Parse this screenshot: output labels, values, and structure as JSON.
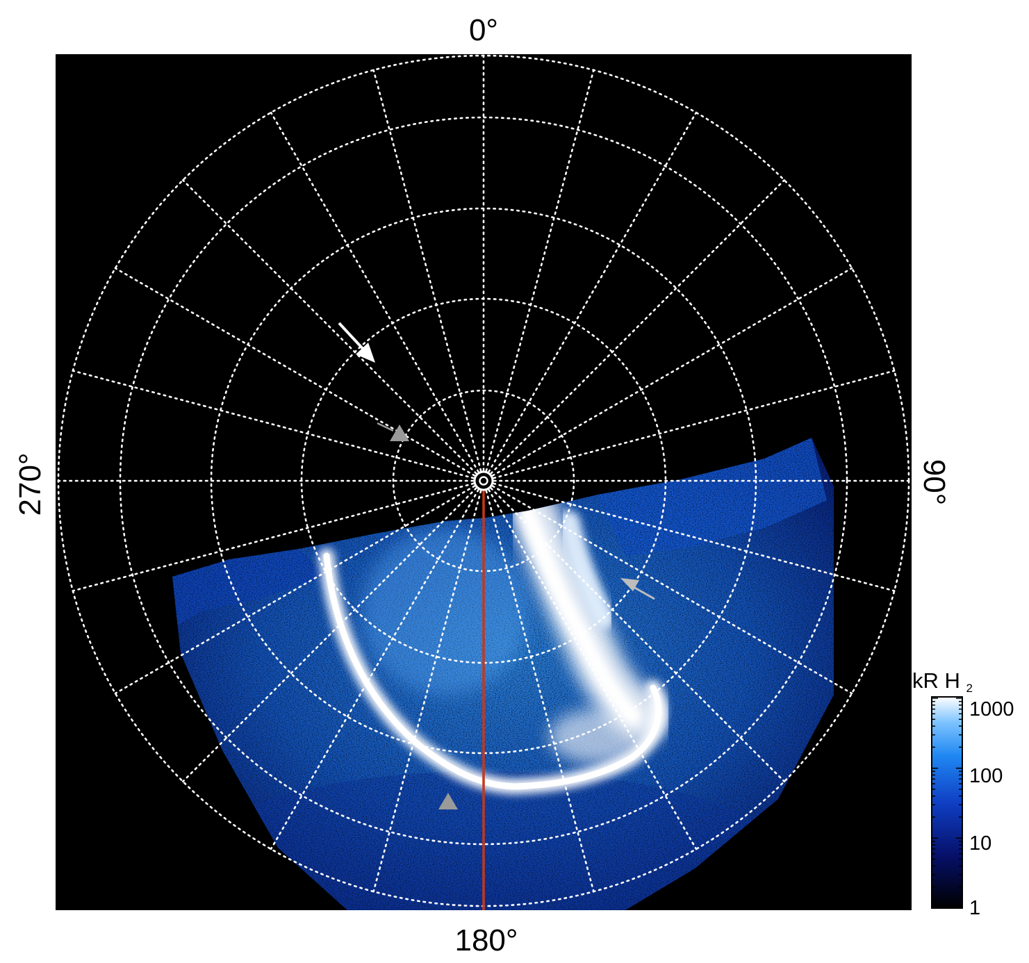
{
  "figure": {
    "labels": {
      "top": "0°",
      "bottom": "180°",
      "left": "270°",
      "right": "90°"
    },
    "colorbar": {
      "title_main": "kR H",
      "title_sub": "2",
      "ticks": [
        "1000",
        "100",
        "10",
        "1"
      ],
      "scale": "log"
    },
    "colors": {
      "background": "#000000",
      "grid": "#ffffff",
      "meridian_line": "#c8361a",
      "arrow_white": "#ffffff",
      "arrow_gray": "#bdbdbd",
      "triangle_gray": "#9a9a9a",
      "emission_low": "#0b1e7a",
      "emission_mid": "#1f7fe6",
      "emission_high": "#ffffff"
    },
    "markers": [
      {
        "kind": "arrow",
        "color": "white"
      },
      {
        "kind": "triangle",
        "color": "gray"
      },
      {
        "kind": "arrow",
        "color": "gray"
      },
      {
        "kind": "triangle",
        "color": "gray"
      }
    ]
  }
}
